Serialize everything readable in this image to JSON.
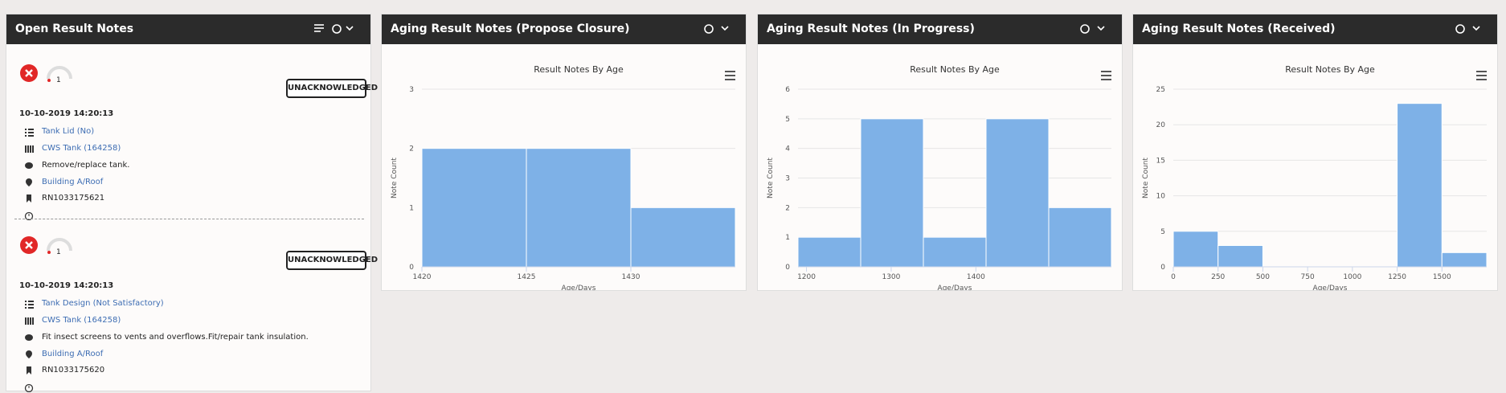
{
  "panels": [
    "Open Result Notes",
    "Aging Result Notes (Propose Closure)",
    "Aging Result Notes (In Progress)",
    "Aging Result Notes (Received)"
  ],
  "notes": [
    {
      "gauge": "1",
      "status": "UNACKNOWLEDGED",
      "date": "10-10-2019 14:20:13",
      "item": "Tank Lid (No)",
      "asset": "CWS Tank (164258)",
      "comment": "Remove/replace tank.",
      "location": "Building A/Roof",
      "id": "RN1033175621"
    },
    {
      "gauge": "1",
      "status": "UNACKNOWLEDGED",
      "date": "10-10-2019 14:20:13",
      "item": "Tank Design (Not Satisfactory)",
      "asset": "CWS Tank (164258)",
      "comment": "Fit insect screens to vents and overflows.Fit/repair tank insulation.",
      "location": "Building A/Roof",
      "id": "RN1033175620"
    }
  ],
  "chart_data": [
    {
      "type": "histogram",
      "title": "Result Notes By Age",
      "xlabel": "Age/Days",
      "ylabel": "Note Count",
      "color": "#7eb1e7",
      "bins": [
        1420,
        1425,
        1430,
        1435
      ],
      "counts": [
        2,
        2,
        1
      ],
      "xlim": [
        1420,
        1435
      ],
      "xticks": [
        1420,
        1425,
        1430
      ],
      "ylim": [
        0,
        3
      ],
      "yticks": [
        0,
        1,
        2,
        3
      ],
      "grid": true
    },
    {
      "type": "histogram",
      "title": "Result Notes By Age",
      "xlabel": "Age/Days",
      "ylabel": "Note Count",
      "color": "#7eb1e7",
      "bins": [
        1190,
        1264,
        1338,
        1412,
        1486,
        1560
      ],
      "counts": [
        1,
        5,
        1,
        5,
        2
      ],
      "xlim": [
        1190,
        1560
      ],
      "xticks": [
        1200,
        1300,
        1400
      ],
      "ylim": [
        0,
        6
      ],
      "yticks": [
        0,
        1,
        2,
        3,
        4,
        5,
        6
      ],
      "grid": true
    },
    {
      "type": "histogram",
      "title": "Result Notes By Age",
      "xlabel": "Age/Days",
      "ylabel": "Note Count",
      "color": "#7eb1e7",
      "bins": [
        0,
        250,
        500,
        750,
        1000,
        1250,
        1500,
        1750
      ],
      "counts": [
        5,
        3,
        0,
        0,
        0,
        23,
        2
      ],
      "xlim": [
        0,
        1750
      ],
      "xticks": [
        0,
        250,
        500,
        750,
        1000,
        1250,
        1500
      ],
      "ylim": [
        0,
        25
      ],
      "yticks": [
        0,
        5,
        10,
        15,
        20,
        25
      ],
      "grid": true
    }
  ]
}
